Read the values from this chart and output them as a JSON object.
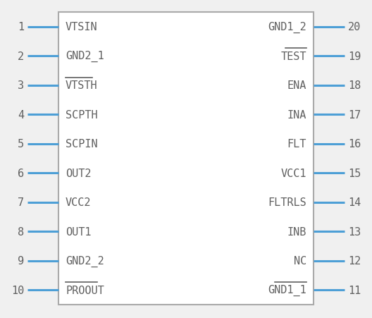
{
  "background_color": "#f0f0f0",
  "body_fill": "#ffffff",
  "body_edge_color": "#aaaaaa",
  "pin_color": "#4d9fd6",
  "text_color": "#606060",
  "num_color": "#606060",
  "left_pins": [
    {
      "num": 1,
      "name": "VTSIN",
      "overbar_chars": ""
    },
    {
      "num": 2,
      "name": "GND2_1",
      "overbar_chars": ""
    },
    {
      "num": 3,
      "name": "VTSTH",
      "overbar_chars": "VTSTH"
    },
    {
      "num": 4,
      "name": "SCPTH",
      "overbar_chars": ""
    },
    {
      "num": 5,
      "name": "SCPIN",
      "overbar_chars": ""
    },
    {
      "num": 6,
      "name": "OUT2",
      "overbar_chars": ""
    },
    {
      "num": 7,
      "name": "VCC2",
      "overbar_chars": ""
    },
    {
      "num": 8,
      "name": "OUT1",
      "overbar_chars": ""
    },
    {
      "num": 9,
      "name": "GND2_2",
      "overbar_chars": ""
    },
    {
      "num": 10,
      "name": "PROOUT",
      "overbar_chars": "PROOUT"
    }
  ],
  "right_pins": [
    {
      "num": 20,
      "name": "GND1_2",
      "overbar_chars": ""
    },
    {
      "num": 19,
      "name": "TEST",
      "overbar_chars": "TEST"
    },
    {
      "num": 18,
      "name": "ENA",
      "overbar_chars": ""
    },
    {
      "num": 17,
      "name": "INA",
      "overbar_chars": ""
    },
    {
      "num": 16,
      "name": "FLT",
      "overbar_chars": ""
    },
    {
      "num": 15,
      "name": "VCC1",
      "overbar_chars": ""
    },
    {
      "num": 14,
      "name": "FLTRLS",
      "overbar_chars": ""
    },
    {
      "num": 13,
      "name": "INB",
      "overbar_chars": ""
    },
    {
      "num": 12,
      "name": "NC",
      "overbar_chars": ""
    },
    {
      "num": 11,
      "name": "GND1_1",
      "overbar_chars": "GND1_1"
    }
  ],
  "pin_lw": 2.2,
  "font_size_label": 11,
  "font_size_num": 11,
  "font_family": "monospace"
}
